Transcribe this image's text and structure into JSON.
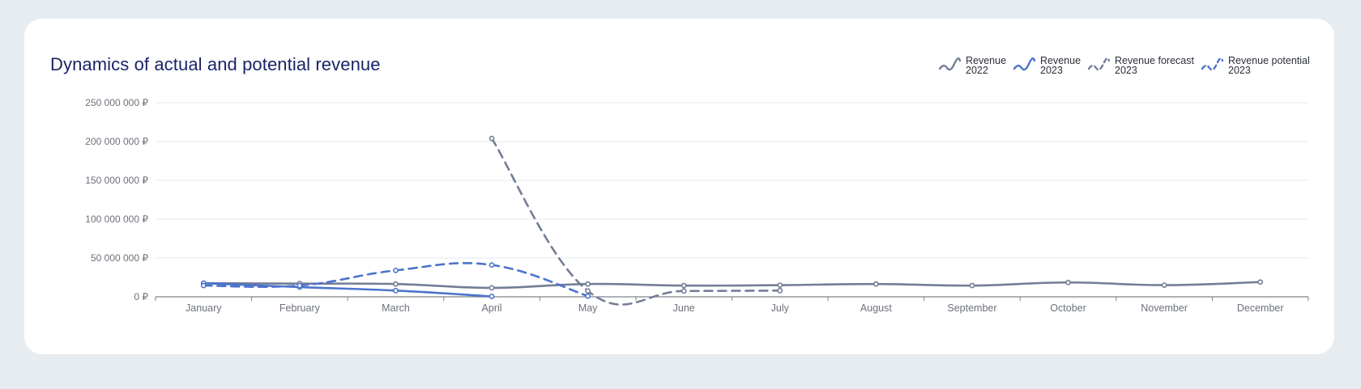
{
  "card": {
    "title": "Dynamics of actual and potential revenue"
  },
  "colors": {
    "background": "#e7ecf0",
    "card": "#ffffff",
    "title": "#1a2466",
    "grid": "#e6e8ec",
    "axis": "#7d828b",
    "tick_text": "#6c717a"
  },
  "chart_data": {
    "type": "line",
    "title": "Dynamics of actual and potential revenue",
    "categories": [
      "January",
      "February",
      "March",
      "April",
      "May",
      "June",
      "July",
      "August",
      "September",
      "October",
      "November",
      "December"
    ],
    "y_ticks": [
      0,
      50000000,
      100000000,
      150000000,
      200000000,
      250000000
    ],
    "y_tick_labels": [
      "0 ₽",
      "50 000 000 ₽",
      "100 000 000 ₽",
      "150 000 000 ₽",
      "200 000 000 ₽",
      "250 000 000 ₽"
    ],
    "ylim": [
      0,
      250000000
    ],
    "grid": "horizontal",
    "legend_position": "top-right",
    "series": [
      {
        "name_lines": [
          "Revenue",
          "2022"
        ],
        "color": "#737d96",
        "dashed": false,
        "values": [
          17500000,
          17000000,
          16500000,
          11500000,
          16500000,
          14500000,
          15000000,
          16500000,
          14500000,
          18500000,
          15000000,
          19000000
        ]
      },
      {
        "name_lines": [
          "Revenue",
          "2023"
        ],
        "color": "#4d74cc",
        "dashed": false,
        "values": [
          17500000,
          12500000,
          8000000,
          500000,
          null,
          null,
          null,
          null,
          null,
          null,
          null,
          null
        ]
      },
      {
        "name_lines": [
          "Revenue forecast",
          "2023"
        ],
        "color": "#737d96",
        "dashed": true,
        "values": [
          null,
          null,
          null,
          204000000,
          7500000,
          7500000,
          8000000,
          null,
          null,
          null,
          null,
          null
        ]
      },
      {
        "name_lines": [
          "Revenue potential",
          "2023"
        ],
        "color": "#4d74cc",
        "dashed": true,
        "values": [
          14500000,
          14500000,
          34000000,
          41000000,
          1000000,
          null,
          null,
          null,
          null,
          null,
          null,
          null
        ]
      }
    ]
  }
}
